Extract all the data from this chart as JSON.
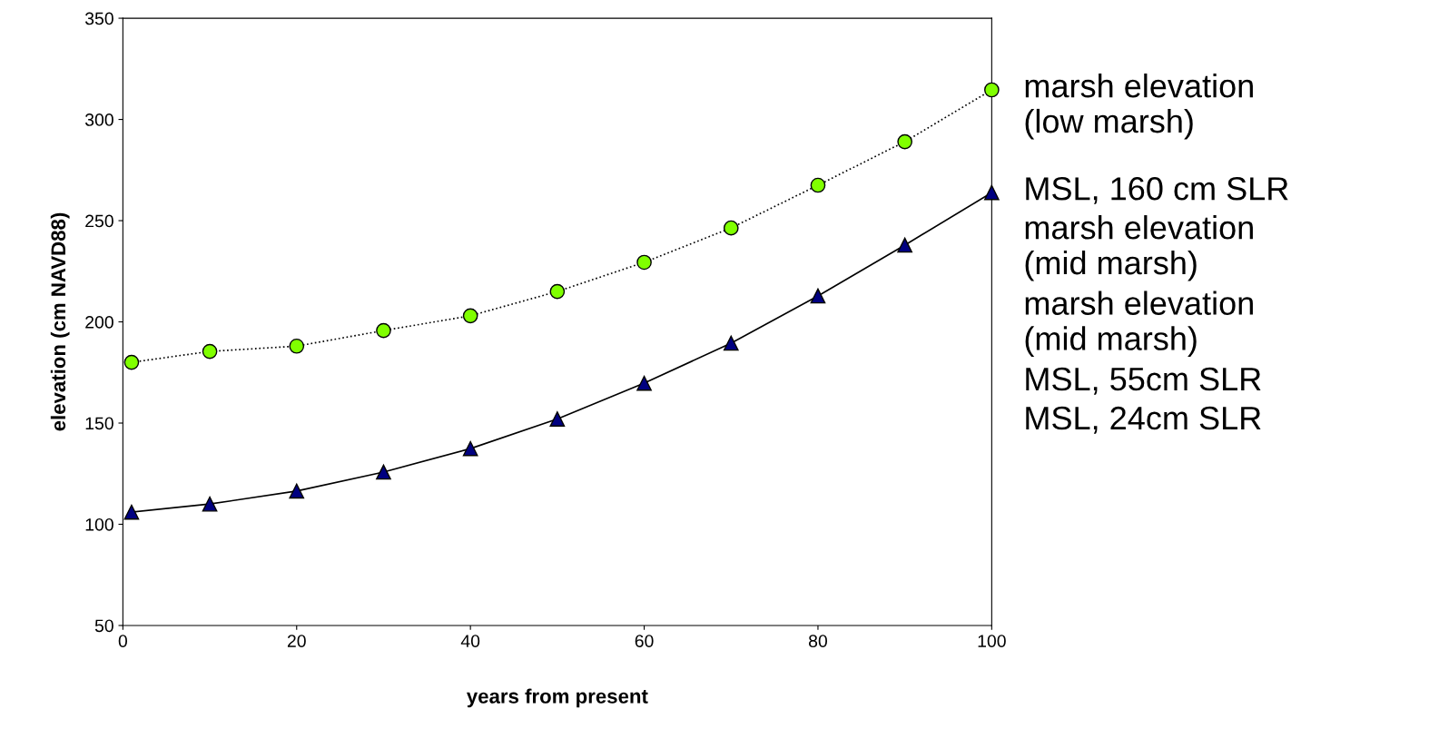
{
  "chart_data": {
    "type": "line",
    "xlabel": "years from present",
    "ylabel": "elevation (cm NAVD88)",
    "x": [
      1,
      10,
      20,
      30,
      40,
      50,
      60,
      70,
      80,
      90,
      100
    ],
    "series": [
      {
        "name": "marsh elevation\n(low marsh)",
        "color": "#80ff00",
        "marker": "circle",
        "line_style": "dotted",
        "values": [
          180,
          185.4,
          188,
          195.7,
          203,
          215,
          229.4,
          246.4,
          267.5,
          289,
          314.6
        ]
      },
      {
        "name": "MSL, 160 cm SLR",
        "color": "#000080",
        "marker": "triangle",
        "line_style": "solid",
        "values": [
          106,
          110,
          116.4,
          125.8,
          137.4,
          152,
          169.7,
          189.5,
          212.8,
          237.9,
          263.9
        ]
      }
    ],
    "annotations": [
      "marsh elevation\n(mid marsh)",
      "marsh elevation\n(mid marsh)",
      "MSL, 55cm SLR",
      "MSL, 24cm SLR"
    ],
    "xlim": [
      0,
      100
    ],
    "xticks": [
      0,
      20,
      40,
      60,
      80,
      100
    ],
    "ylim": [
      50,
      350
    ],
    "yticks": [
      50,
      100,
      150,
      200,
      250,
      300,
      350
    ],
    "grid": false,
    "legend": false
  }
}
